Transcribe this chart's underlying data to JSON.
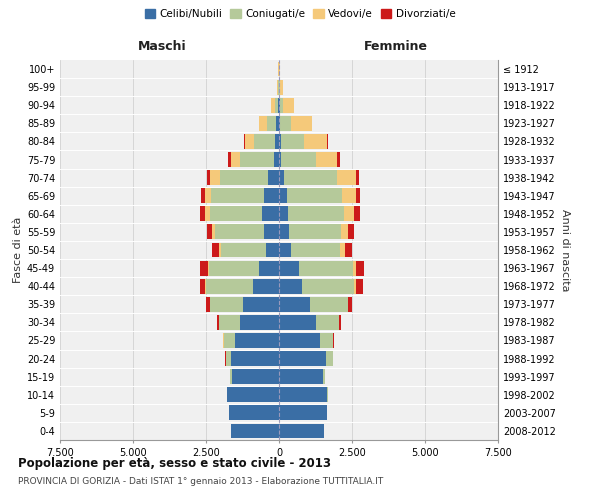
{
  "age_groups": [
    "0-4",
    "5-9",
    "10-14",
    "15-19",
    "20-24",
    "25-29",
    "30-34",
    "35-39",
    "40-44",
    "45-49",
    "50-54",
    "55-59",
    "60-64",
    "65-69",
    "70-74",
    "75-79",
    "80-84",
    "85-89",
    "90-94",
    "95-99",
    "100+"
  ],
  "birth_years": [
    "2008-2012",
    "2003-2007",
    "1998-2002",
    "1993-1997",
    "1988-1992",
    "1983-1987",
    "1978-1982",
    "1973-1977",
    "1968-1972",
    "1963-1967",
    "1958-1962",
    "1953-1957",
    "1948-1952",
    "1943-1947",
    "1938-1942",
    "1933-1937",
    "1928-1932",
    "1923-1927",
    "1918-1922",
    "1913-1917",
    "≤ 1912"
  ],
  "colors": {
    "celibi": "#3a6ea5",
    "coniugati": "#b5c99a",
    "vedovi": "#f5c97a",
    "divorziati": "#cc1a1a"
  },
  "maschi": {
    "celibi": [
      1650,
      1700,
      1780,
      1600,
      1650,
      1500,
      1350,
      1250,
      900,
      700,
      450,
      500,
      580,
      520,
      380,
      180,
      130,
      90,
      40,
      15,
      10
    ],
    "coniugati": [
      5,
      8,
      15,
      70,
      180,
      400,
      700,
      1100,
      1600,
      1700,
      1550,
      1700,
      1800,
      1800,
      1650,
      1150,
      720,
      320,
      90,
      25,
      5
    ],
    "vedovi": [
      2,
      2,
      2,
      2,
      2,
      3,
      5,
      10,
      25,
      40,
      60,
      90,
      160,
      230,
      350,
      330,
      330,
      280,
      130,
      35,
      8
    ],
    "divorziati": [
      0,
      0,
      0,
      3,
      8,
      25,
      60,
      130,
      180,
      250,
      220,
      170,
      150,
      120,
      95,
      75,
      20,
      10,
      5,
      2,
      0
    ]
  },
  "femmine": {
    "nubili": [
      1550,
      1650,
      1650,
      1500,
      1600,
      1400,
      1250,
      1050,
      780,
      680,
      400,
      330,
      320,
      270,
      170,
      80,
      60,
      45,
      25,
      12,
      8
    ],
    "coniugate": [
      5,
      8,
      15,
      80,
      240,
      450,
      800,
      1300,
      1800,
      1850,
      1700,
      1800,
      1900,
      1900,
      1800,
      1200,
      800,
      360,
      110,
      25,
      5
    ],
    "vedove": [
      2,
      2,
      2,
      3,
      4,
      8,
      15,
      30,
      60,
      100,
      170,
      250,
      360,
      450,
      650,
      720,
      800,
      720,
      380,
      100,
      15
    ],
    "divorziate": [
      0,
      0,
      0,
      3,
      10,
      25,
      65,
      130,
      220,
      280,
      240,
      190,
      180,
      140,
      110,
      75,
      22,
      12,
      6,
      2,
      0
    ]
  },
  "xlim": 7500,
  "xticks": [
    -7500,
    -5000,
    -2500,
    0,
    2500,
    5000,
    7500
  ],
  "xtick_labels": [
    "7.500",
    "5.000",
    "2.500",
    "0",
    "2.500",
    "5.000",
    "7.500"
  ],
  "title_main": "Popolazione per età, sesso e stato civile - 2013",
  "title_sub": "PROVINCIA DI GORIZIA - Dati ISTAT 1° gennaio 2013 - Elaborazione TUTTITALIA.IT",
  "ylabel_left": "Fasce di età",
  "ylabel_right": "Anni di nascita",
  "header_left": "Maschi",
  "header_right": "Femmine",
  "bg_color": "#f0f0f0"
}
